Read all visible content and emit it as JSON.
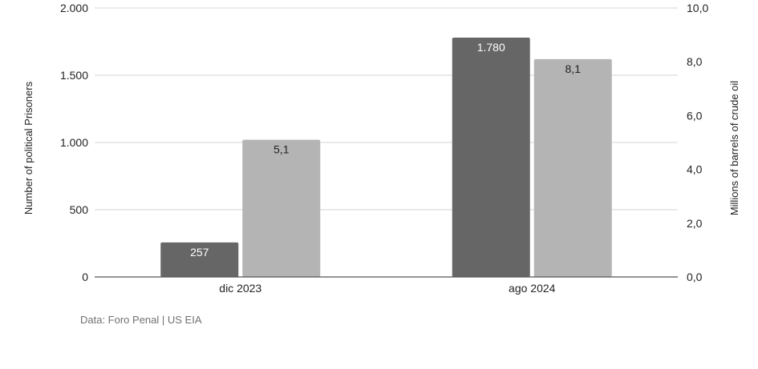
{
  "chart_data": {
    "type": "bar",
    "categories": [
      "dic 2023",
      "ago 2024"
    ],
    "series": [
      {
        "name": "Number of political Prisoners",
        "axis": "left",
        "color": "#666666",
        "label_color": "#ffffff",
        "values": [
          257,
          1780
        ],
        "labels": [
          "257",
          "1.780"
        ]
      },
      {
        "name": "Millions of barrels of crude oil",
        "axis": "right",
        "color": "#b4b4b4",
        "label_color": "#222222",
        "values": [
          5.1,
          8.1
        ],
        "labels": [
          "5,1",
          "8,1"
        ]
      }
    ],
    "y_left": {
      "label": "Number of political Prisoners",
      "ylim": [
        0,
        2000
      ],
      "ticks": [
        0,
        500,
        1000,
        1500,
        2000
      ],
      "tick_labels": [
        "0",
        "500",
        "1.000",
        "1.500",
        "2.000"
      ]
    },
    "y_right": {
      "label": "Millions of barrels of crude oil",
      "ylim": [
        0,
        10
      ],
      "ticks": [
        0,
        2,
        4,
        6,
        8,
        10
      ],
      "tick_labels": [
        "0,0",
        "2,0",
        "4,0",
        "6,0",
        "8,0",
        "10,0"
      ]
    },
    "grid": true,
    "legend": "none",
    "source": "Data: Foro Penal | US EIA"
  }
}
